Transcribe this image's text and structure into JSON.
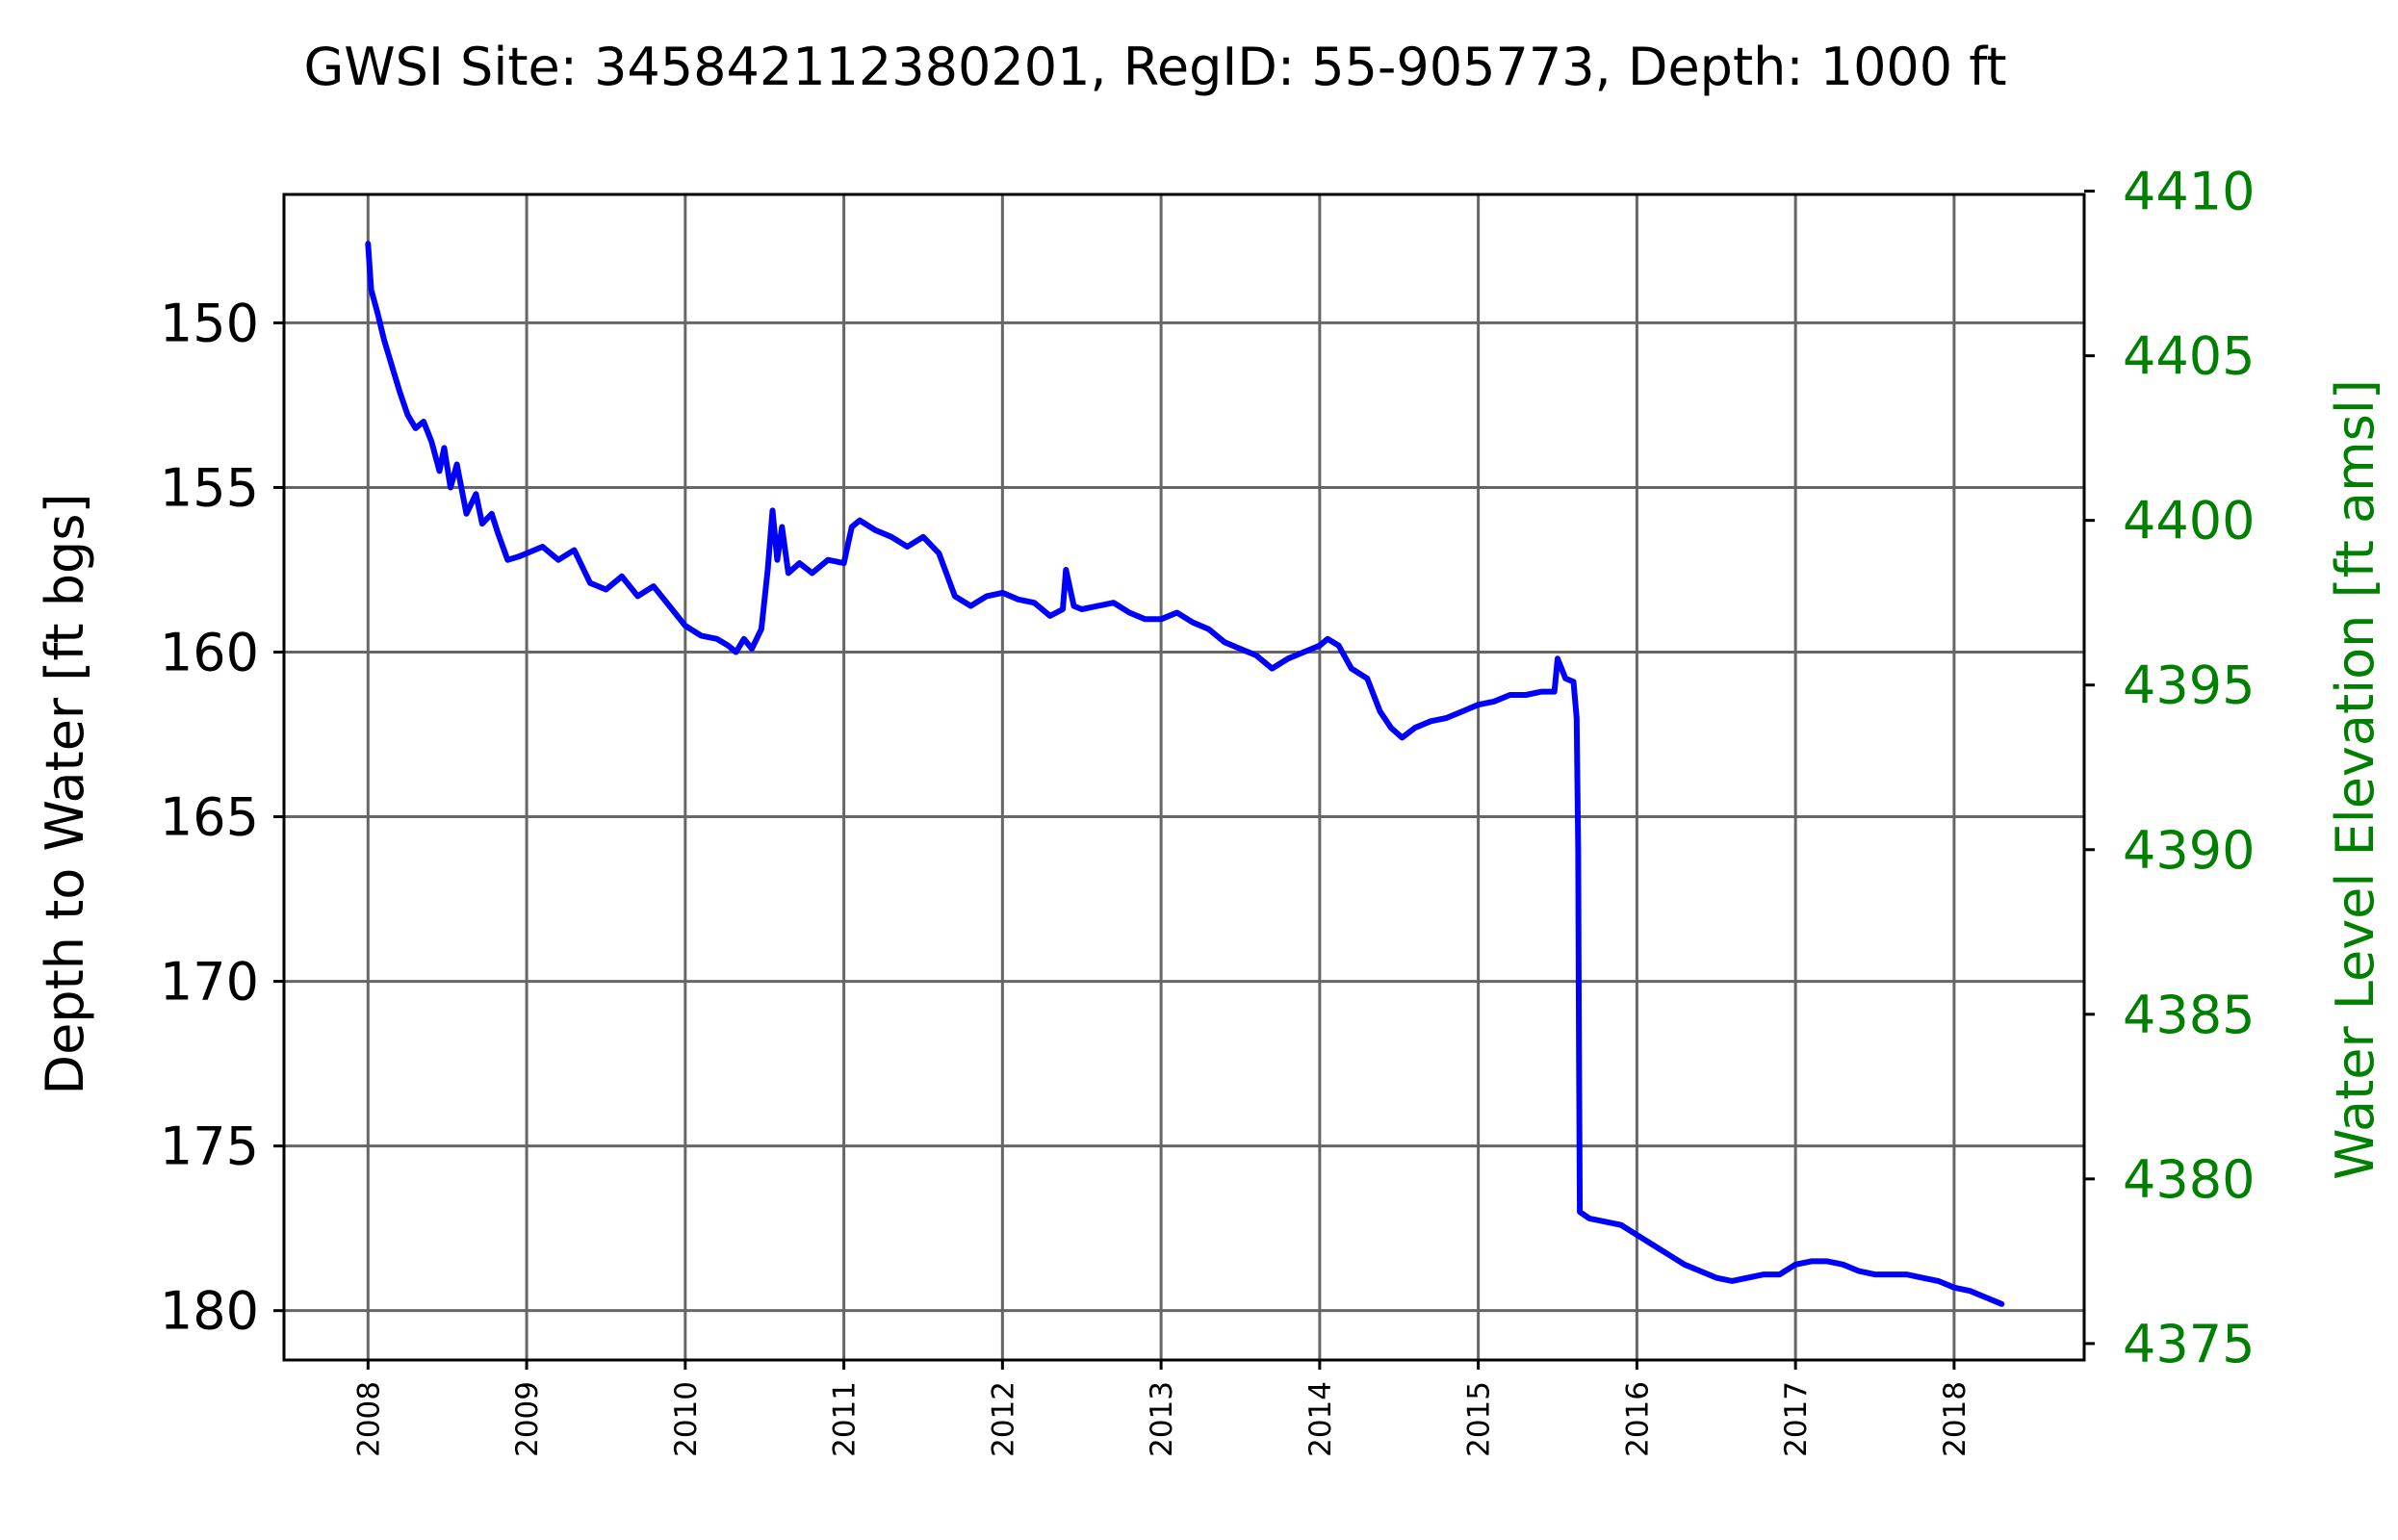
{
  "chart_data": {
    "type": "line",
    "title": "GWSI Site: 345842112380201, RegID: 55-905773, Depth: 1000 ft",
    "ylabel": "Depth to Water [ft bgs]",
    "y2label": "Water Level Elevation [ft amsl]",
    "xlim": [
      2007.47,
      2018.82
    ],
    "ylim": [
      181.5,
      146.1
    ],
    "y2lim": [
      4374.5,
      4409.9
    ],
    "inverted_left_axis": true,
    "grid": true,
    "xticks": [
      "2008",
      "2009",
      "2010",
      "2011",
      "2012",
      "2013",
      "2014",
      "2015",
      "2016",
      "2017",
      "2018"
    ],
    "yticks": [
      "150",
      "155",
      "160",
      "165",
      "170",
      "175",
      "180"
    ],
    "y2ticks": [
      "4375",
      "4380",
      "4385",
      "4390",
      "4395",
      "4400",
      "4405",
      "4410"
    ],
    "colors": {
      "series": "#0000ff",
      "right_axis": "#008000"
    },
    "series": [
      {
        "values": [
          [
            2008.0,
            147.6
          ],
          [
            2008.02,
            149.0
          ],
          [
            2008.06,
            149.7
          ],
          [
            2008.1,
            150.5
          ],
          [
            2008.15,
            151.3
          ],
          [
            2008.2,
            152.1
          ],
          [
            2008.25,
            152.8
          ],
          [
            2008.3,
            153.2
          ],
          [
            2008.35,
            153.0
          ],
          [
            2008.4,
            153.6
          ],
          [
            2008.45,
            154.5
          ],
          [
            2008.48,
            153.8
          ],
          [
            2008.52,
            155.0
          ],
          [
            2008.56,
            154.3
          ],
          [
            2008.62,
            155.8
          ],
          [
            2008.68,
            155.2
          ],
          [
            2008.72,
            156.1
          ],
          [
            2008.78,
            155.8
          ],
          [
            2008.82,
            156.4
          ],
          [
            2008.88,
            157.2
          ],
          [
            2008.95,
            157.1
          ],
          [
            2009.0,
            157.0
          ],
          [
            2009.1,
            156.8
          ],
          [
            2009.2,
            157.2
          ],
          [
            2009.3,
            156.9
          ],
          [
            2009.4,
            157.9
          ],
          [
            2009.5,
            158.1
          ],
          [
            2009.6,
            157.7
          ],
          [
            2009.7,
            158.3
          ],
          [
            2009.8,
            158.0
          ],
          [
            2009.9,
            158.6
          ],
          [
            2010.0,
            159.2
          ],
          [
            2010.1,
            159.5
          ],
          [
            2010.2,
            159.6
          ],
          [
            2010.27,
            159.8
          ],
          [
            2010.32,
            160.0
          ],
          [
            2010.37,
            159.6
          ],
          [
            2010.42,
            159.9
          ],
          [
            2010.48,
            159.3
          ],
          [
            2010.52,
            157.5
          ],
          [
            2010.55,
            155.7
          ],
          [
            2010.58,
            157.2
          ],
          [
            2010.61,
            156.2
          ],
          [
            2010.65,
            157.6
          ],
          [
            2010.72,
            157.3
          ],
          [
            2010.8,
            157.6
          ],
          [
            2010.9,
            157.2
          ],
          [
            2011.0,
            157.3
          ],
          [
            2011.05,
            156.2
          ],
          [
            2011.1,
            156.0
          ],
          [
            2011.2,
            156.3
          ],
          [
            2011.3,
            156.5
          ],
          [
            2011.4,
            156.8
          ],
          [
            2011.5,
            156.5
          ],
          [
            2011.6,
            157.0
          ],
          [
            2011.7,
            158.3
          ],
          [
            2011.8,
            158.6
          ],
          [
            2011.9,
            158.3
          ],
          [
            2012.0,
            158.2
          ],
          [
            2012.1,
            158.4
          ],
          [
            2012.2,
            158.5
          ],
          [
            2012.3,
            158.9
          ],
          [
            2012.38,
            158.7
          ],
          [
            2012.4,
            157.5
          ],
          [
            2012.45,
            158.6
          ],
          [
            2012.5,
            158.7
          ],
          [
            2012.6,
            158.6
          ],
          [
            2012.7,
            158.5
          ],
          [
            2012.8,
            158.8
          ],
          [
            2012.9,
            159.0
          ],
          [
            2013.0,
            159.0
          ],
          [
            2013.1,
            158.8
          ],
          [
            2013.2,
            159.1
          ],
          [
            2013.3,
            159.3
          ],
          [
            2013.4,
            159.7
          ],
          [
            2013.5,
            159.9
          ],
          [
            2013.6,
            160.1
          ],
          [
            2013.7,
            160.5
          ],
          [
            2013.8,
            160.2
          ],
          [
            2013.9,
            160.0
          ],
          [
            2014.0,
            159.8
          ],
          [
            2014.05,
            159.6
          ],
          [
            2014.12,
            159.8
          ],
          [
            2014.2,
            160.5
          ],
          [
            2014.3,
            160.8
          ],
          [
            2014.38,
            161.8
          ],
          [
            2014.45,
            162.3
          ],
          [
            2014.52,
            162.6
          ],
          [
            2014.6,
            162.3
          ],
          [
            2014.7,
            162.1
          ],
          [
            2014.8,
            162.0
          ],
          [
            2014.9,
            161.8
          ],
          [
            2015.0,
            161.6
          ],
          [
            2015.1,
            161.5
          ],
          [
            2015.2,
            161.3
          ],
          [
            2015.3,
            161.3
          ],
          [
            2015.4,
            161.2
          ],
          [
            2015.48,
            161.2
          ],
          [
            2015.5,
            160.2
          ],
          [
            2015.55,
            160.8
          ],
          [
            2015.6,
            160.9
          ],
          [
            2015.62,
            162.0
          ],
          [
            2015.63,
            166.0
          ],
          [
            2015.635,
            172.0
          ],
          [
            2015.64,
            177.0
          ],
          [
            2015.7,
            177.2
          ],
          [
            2015.8,
            177.3
          ],
          [
            2015.9,
            177.4
          ],
          [
            2016.0,
            177.7
          ],
          [
            2016.1,
            178.0
          ],
          [
            2016.2,
            178.3
          ],
          [
            2016.3,
            178.6
          ],
          [
            2016.4,
            178.8
          ],
          [
            2016.5,
            179.0
          ],
          [
            2016.6,
            179.1
          ],
          [
            2016.7,
            179.0
          ],
          [
            2016.8,
            178.9
          ],
          [
            2016.9,
            178.9
          ],
          [
            2017.0,
            178.6
          ],
          [
            2017.1,
            178.5
          ],
          [
            2017.2,
            178.5
          ],
          [
            2017.3,
            178.6
          ],
          [
            2017.4,
            178.8
          ],
          [
            2017.5,
            178.9
          ],
          [
            2017.6,
            178.9
          ],
          [
            2017.7,
            178.9
          ],
          [
            2017.8,
            179.0
          ],
          [
            2017.9,
            179.1
          ],
          [
            2018.0,
            179.3
          ],
          [
            2018.1,
            179.4
          ],
          [
            2018.2,
            179.6
          ],
          [
            2018.3,
            179.8
          ]
        ]
      }
    ]
  }
}
